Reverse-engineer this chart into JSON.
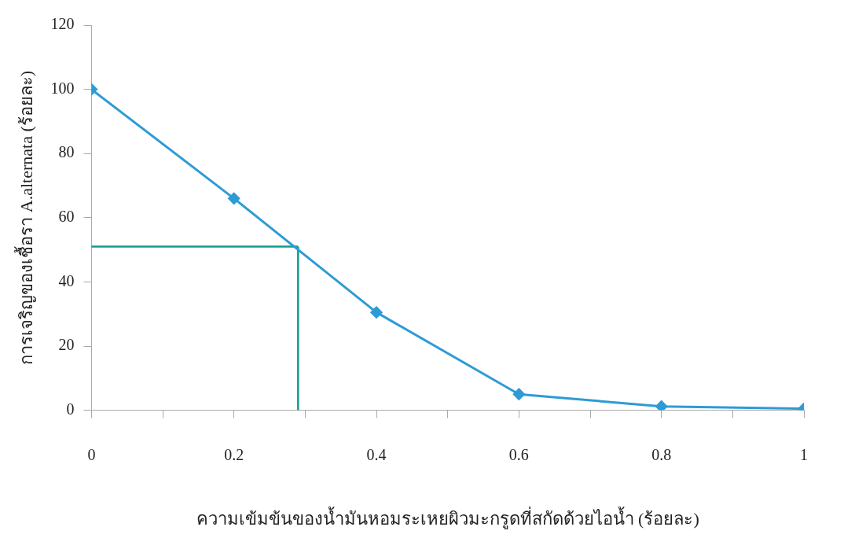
{
  "chart_data": {
    "type": "line",
    "xlabel": "ความเข้มข้นของน้ำมันหอมระเหยผิวมะกรูดที่สกัดด้วยไอน้ำ (ร้อยละ)",
    "ylabel": "การเจริญของเชื้อรา A.alternata (ร้อยละ)",
    "x": [
      0,
      0.2,
      0.4,
      0.6,
      0.8,
      1
    ],
    "series": [
      {
        "color": "#2e9bd6",
        "values": [
          100,
          66,
          30.5,
          5,
          1.2,
          0.5
        ],
        "marker": "diamond"
      }
    ],
    "ref_lines": [
      {
        "axis": "y",
        "value": 51,
        "color": "#139a8c"
      },
      {
        "axis": "x",
        "value": 0.29,
        "color": "#139a8c"
      }
    ],
    "xlim": [
      0,
      1
    ],
    "xticks": [
      0,
      {
        "value": 0.1,
        "label": null
      },
      0.2,
      {
        "value": 0.3,
        "label": null
      },
      0.4,
      {
        "value": 0.5,
        "label": null
      },
      0.6,
      {
        "value": 0.7,
        "label": null
      },
      0.8,
      {
        "value": 0.9,
        "label": null
      },
      1
    ],
    "ylim": [
      0,
      120
    ],
    "yticks": [
      0,
      20,
      40,
      60,
      80,
      100,
      120
    ],
    "grid": false,
    "legend": false
  }
}
